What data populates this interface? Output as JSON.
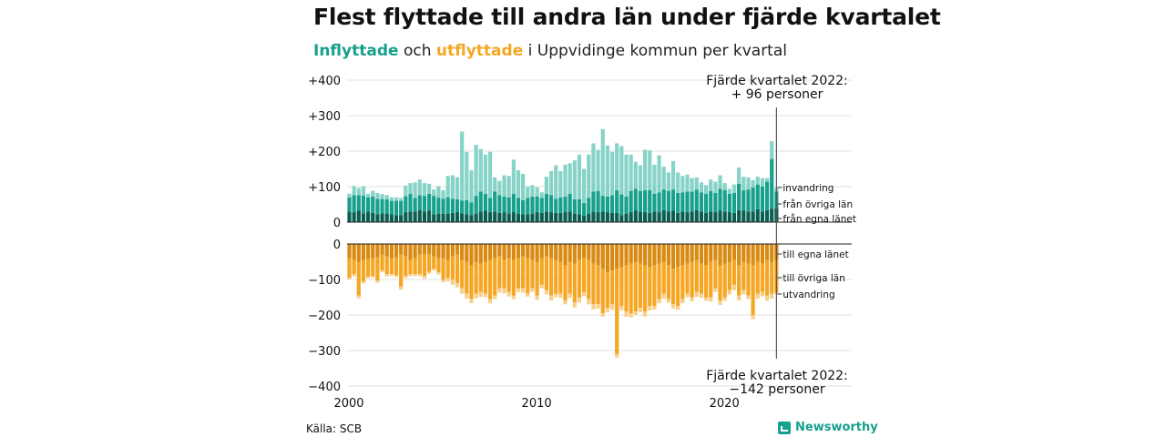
{
  "title": "Flest flyttade till andra län under fjärde kvartalet",
  "subtitle": {
    "in_word": "Inflyttade",
    "mid1": " och ",
    "out_word": "utflyttade",
    "rest": " i Uppvidinge kommun per kvartal"
  },
  "annotations": {
    "top_line1": "Fjärde kvartalet 2022:",
    "top_line2": "+ 96 personer",
    "bottom_line1": "Fjärde kvartalet 2022:",
    "bottom_line2": "−142 personer"
  },
  "source": "Källa: SCB",
  "brand": "Newsworthy",
  "colors": {
    "in_egna": "#0b5e52",
    "in_ovriga": "#17a08c",
    "in_invandring": "#86d3c7",
    "out_egna": "#d98a12",
    "out_ovriga": "#f5a623",
    "out_utvandring": "#f8cf8c"
  },
  "chart_data": {
    "type": "bar",
    "stacked": true,
    "x_start": "2000 Q1",
    "x_end": "2022 Q4",
    "x_ticks": [
      "2000",
      "2010",
      "2020"
    ],
    "y_ticks_top": [
      "+400",
      "+300",
      "+200",
      "+100",
      "0"
    ],
    "y_ticks_bottom": [
      "0",
      "−100",
      "−200",
      "−300",
      "−400"
    ],
    "ylim_top": [
      0,
      400
    ],
    "ylim_bottom": [
      -400,
      0
    ],
    "grid": true,
    "segment_labels_top": [
      "invandring",
      "från övriga län",
      "från egna länet"
    ],
    "segment_labels_bottom": [
      "till egna länet",
      "till övriga län",
      "utvandring"
    ],
    "inflows": {
      "fran_egna_lanet": [
        30,
        28,
        32,
        25,
        30,
        26,
        22,
        25,
        24,
        22,
        20,
        20,
        28,
        30,
        30,
        34,
        30,
        32,
        22,
        24,
        24,
        24,
        26,
        28,
        25,
        22,
        20,
        24,
        30,
        32,
        28,
        30,
        26,
        28,
        24,
        28,
        24,
        22,
        22,
        24,
        28,
        26,
        30,
        28,
        26,
        26,
        28,
        30,
        24,
        22,
        18,
        24,
        30,
        28,
        30,
        28,
        26,
        26,
        20,
        24,
        28,
        32,
        30,
        28,
        26,
        30,
        28,
        34,
        30,
        32,
        26,
        30,
        28,
        30,
        34,
        30,
        26,
        30,
        28,
        32,
        30,
        28,
        26,
        34,
        32,
        30,
        30,
        36,
        30,
        34,
        38,
        40
      ],
      "fran_ovriga_lan": [
        40,
        48,
        44,
        50,
        40,
        46,
        44,
        40,
        40,
        38,
        40,
        40,
        45,
        50,
        38,
        42,
        44,
        48,
        52,
        45,
        42,
        46,
        40,
        36,
        36,
        40,
        36,
        50,
        56,
        48,
        40,
        56,
        50,
        44,
        46,
        52,
        44,
        40,
        46,
        48,
        44,
        42,
        50,
        48,
        40,
        44,
        44,
        50,
        40,
        42,
        36,
        44,
        56,
        60,
        44,
        44,
        50,
        64,
        58,
        48,
        60,
        62,
        58,
        62,
        64,
        50,
        56,
        58,
        58,
        60,
        56,
        54,
        58,
        56,
        58,
        54,
        54,
        58,
        54,
        62,
        60,
        52,
        56,
        74,
        58,
        62,
        68,
        70,
        70,
        80,
        140,
        46
      ],
      "invandring": [
        10,
        26,
        20,
        26,
        10,
        16,
        16,
        14,
        12,
        10,
        10,
        8,
        30,
        30,
        44,
        44,
        36,
        28,
        18,
        32,
        24,
        60,
        66,
        62,
        194,
        136,
        90,
        144,
        120,
        110,
        130,
        40,
        40,
        60,
        60,
        96,
        78,
        74,
        32,
        32,
        26,
        16,
        48,
        68,
        94,
        74,
        90,
        86,
        110,
        126,
        96,
        122,
        136,
        116,
        188,
        144,
        122,
        132,
        136,
        118,
        102,
        76,
        72,
        114,
        112,
        82,
        104,
        64,
        52,
        80,
        58,
        46,
        48,
        38,
        34,
        28,
        24,
        32,
        32,
        38,
        20,
        14,
        24,
        46,
        38,
        34,
        20,
        22,
        24,
        10,
        50,
        10
      ]
    },
    "outflows": {
      "till_egna_lanet": [
        -40,
        -45,
        -50,
        -45,
        -42,
        -40,
        -38,
        -30,
        -35,
        -40,
        -38,
        -30,
        -35,
        -45,
        -40,
        -30,
        -30,
        -28,
        -35,
        -40,
        -40,
        -45,
        -35,
        -30,
        -45,
        -50,
        -60,
        -50,
        -55,
        -50,
        -45,
        -40,
        -35,
        -45,
        -40,
        -45,
        -40,
        -35,
        -40,
        -45,
        -50,
        -40,
        -35,
        -40,
        -45,
        -50,
        -60,
        -50,
        -55,
        -45,
        -40,
        -45,
        -55,
        -60,
        -70,
        -80,
        -75,
        -70,
        -65,
        -60,
        -55,
        -50,
        -55,
        -60,
        -65,
        -60,
        -55,
        -50,
        -60,
        -70,
        -65,
        -60,
        -55,
        -50,
        -45,
        -55,
        -60,
        -50,
        -45,
        -60,
        -55,
        -50,
        -45,
        -60,
        -50,
        -55,
        -60,
        -50,
        -55,
        -45,
        -50,
        -45
      ],
      "till_ovriga_lan": [
        -55,
        -40,
        -95,
        -60,
        -50,
        -50,
        -65,
        -45,
        -50,
        -45,
        -50,
        -90,
        -55,
        -40,
        -45,
        -55,
        -60,
        -50,
        -35,
        -40,
        -60,
        -50,
        -65,
        -80,
        -80,
        -90,
        -95,
        -90,
        -80,
        -90,
        -110,
        -105,
        -90,
        -80,
        -95,
        -100,
        -85,
        -90,
        -100,
        -80,
        -95,
        -75,
        -95,
        -105,
        -95,
        -90,
        -100,
        -90,
        -110,
        -105,
        -95,
        -110,
        -115,
        -110,
        -125,
        -100,
        -95,
        -240,
        -110,
        -130,
        -140,
        -140,
        -125,
        -130,
        -110,
        -115,
        -100,
        -90,
        -95,
        -100,
        -110,
        -95,
        -85,
        -100,
        -90,
        -85,
        -90,
        -100,
        -80,
        -100,
        -95,
        -80,
        -70,
        -85,
        -80,
        -90,
        -140,
        -90,
        -80,
        -100,
        -90,
        -92
      ],
      "utvandring": [
        -5,
        -6,
        -8,
        -6,
        -5,
        -5,
        -6,
        -5,
        -6,
        -5,
        -5,
        -8,
        -6,
        -5,
        -5,
        -6,
        -8,
        -6,
        -5,
        -6,
        -8,
        -10,
        -15,
        -12,
        -15,
        -14,
        -12,
        -13,
        -14,
        -10,
        -12,
        -10,
        -12,
        -14,
        -13,
        -10,
        -10,
        -12,
        -8,
        -10,
        -12,
        -10,
        -12,
        -14,
        -10,
        -12,
        -10,
        -12,
        -14,
        -15,
        -12,
        -15,
        -14,
        -12,
        -10,
        -12,
        -15,
        -10,
        -12,
        -15,
        -12,
        -10,
        -12,
        -14,
        -12,
        -10,
        -12,
        -14,
        -10,
        -12,
        -10,
        -12,
        -10,
        -12,
        -14,
        -12,
        -10,
        -12,
        -10,
        -12,
        -10,
        -12,
        -15,
        -14,
        -12,
        -10,
        -12,
        -14,
        -12,
        -15,
        -14,
        -5
      ]
    }
  }
}
